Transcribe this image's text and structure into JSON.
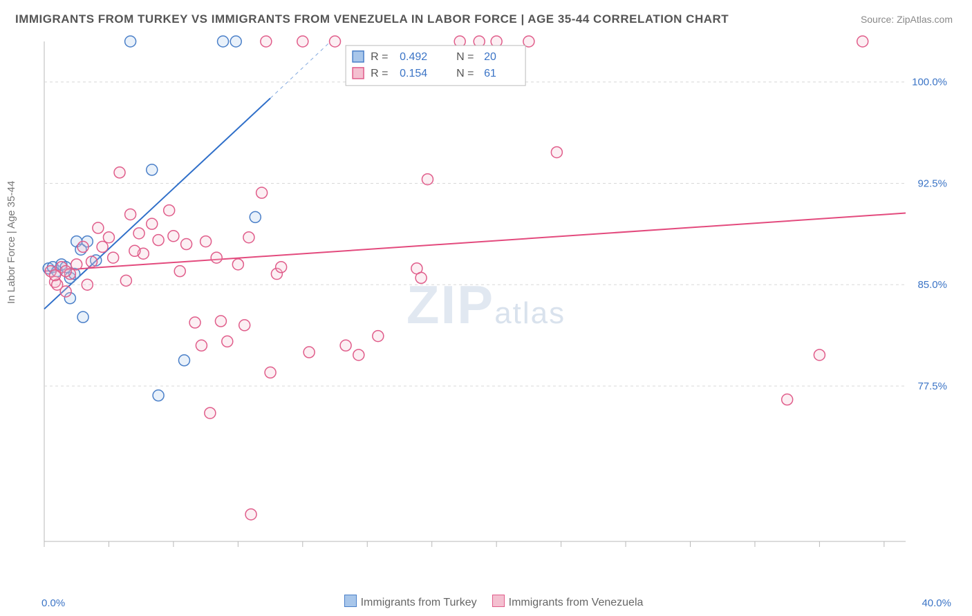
{
  "title": "IMMIGRANTS FROM TURKEY VS IMMIGRANTS FROM VENEZUELA IN LABOR FORCE | AGE 35-44 CORRELATION CHART",
  "source": "Source: ZipAtlas.com",
  "ylabel": "In Labor Force | Age 35-44",
  "watermark_big": "ZIP",
  "watermark_small": "atlas",
  "chart": {
    "type": "scatter",
    "background_color": "#ffffff",
    "grid_color": "#d8d8d8",
    "grid_dash": "4,4",
    "axis_color": "#b8b8b8",
    "tick_len": 8,
    "xlim": [
      0,
      40
    ],
    "ylim": [
      66,
      103
    ],
    "xticks_minor": [
      0,
      3,
      6,
      9,
      12,
      15,
      18,
      21,
      24,
      27,
      30,
      33,
      36,
      39
    ],
    "yticks": [
      77.5,
      85.0,
      92.5,
      100.0
    ],
    "ytick_labels": [
      "77.5%",
      "85.0%",
      "92.5%",
      "100.0%"
    ],
    "xtick_labels": {
      "0": "0.0%",
      "40": "40.0%"
    },
    "label_color": "#3b74c6",
    "label_fontsize": 15,
    "marker_radius": 8,
    "marker_stroke_width": 1.5,
    "marker_fill_opacity": 0.25,
    "stats_box": {
      "x": 17,
      "y_top": 102.7,
      "width": 10,
      "border_color": "#bbbbbb",
      "text_color": "#555555",
      "value_color": "#3b74c6",
      "fontsize": 16,
      "rows": [
        {
          "swatch_fill": "#a8c6ea",
          "swatch_stroke": "#4a7fc8",
          "r": "0.492",
          "n": "20"
        },
        {
          "swatch_fill": "#f4c0d0",
          "swatch_stroke": "#e05c8a",
          "r": "0.154",
          "n": "61"
        }
      ],
      "labels": {
        "r": "R =",
        "n": "N ="
      }
    },
    "series": [
      {
        "name": "Immigrants from Turkey",
        "fill": "#a8c6ea",
        "stroke": "#4a7fc8",
        "trend": {
          "x1": 0,
          "y1": 83.2,
          "x2": 13.3,
          "y2": 103,
          "solid_to_x": 10.5,
          "solid_to_y": 98.8,
          "color": "#2f6fc9",
          "width": 2
        },
        "points": [
          [
            0.2,
            86.2
          ],
          [
            0.4,
            86.3
          ],
          [
            0.6,
            86.0
          ],
          [
            0.8,
            86.5
          ],
          [
            1.0,
            86.3
          ],
          [
            1.2,
            85.5
          ],
          [
            1.5,
            88.2
          ],
          [
            1.7,
            87.6
          ],
          [
            1.2,
            84.0
          ],
          [
            1.8,
            82.6
          ],
          [
            2.0,
            88.2
          ],
          [
            2.4,
            86.8
          ],
          [
            4.0,
            103
          ],
          [
            5.0,
            93.5
          ],
          [
            6.5,
            79.4
          ],
          [
            8.3,
            103
          ],
          [
            8.9,
            103
          ],
          [
            5.3,
            76.8
          ],
          [
            9.8,
            90.0
          ],
          [
            1.4,
            85.8
          ]
        ]
      },
      {
        "name": "Immigrants from Venezuela",
        "fill": "#f4c0d0",
        "stroke": "#e05c8a",
        "trend": {
          "x1": 0,
          "y1": 86.0,
          "x2": 40,
          "y2": 90.3,
          "color": "#e34a7d",
          "width": 2
        },
        "points": [
          [
            0.3,
            86.0
          ],
          [
            0.5,
            85.2
          ],
          [
            0.8,
            86.3
          ],
          [
            0.6,
            85.0
          ],
          [
            1.2,
            85.8
          ],
          [
            1.0,
            84.5
          ],
          [
            1.5,
            86.5
          ],
          [
            1.8,
            87.8
          ],
          [
            2.0,
            85.0
          ],
          [
            2.2,
            86.7
          ],
          [
            2.5,
            89.2
          ],
          [
            3.0,
            88.5
          ],
          [
            3.2,
            87.0
          ],
          [
            3.5,
            93.3
          ],
          [
            4.0,
            90.2
          ],
          [
            4.4,
            88.8
          ],
          [
            4.6,
            87.3
          ],
          [
            5.0,
            89.5
          ],
          [
            5.3,
            88.3
          ],
          [
            5.8,
            90.5
          ],
          [
            6.0,
            88.6
          ],
          [
            6.3,
            86.0
          ],
          [
            6.6,
            88.0
          ],
          [
            7.0,
            82.2
          ],
          [
            7.3,
            80.5
          ],
          [
            7.5,
            88.2
          ],
          [
            8.0,
            87.0
          ],
          [
            8.2,
            82.3
          ],
          [
            8.5,
            80.8
          ],
          [
            9.0,
            86.5
          ],
          [
            9.3,
            82.0
          ],
          [
            9.5,
            88.5
          ],
          [
            10.1,
            91.8
          ],
          [
            10.3,
            103
          ],
          [
            10.8,
            85.8
          ],
          [
            7.7,
            75.5
          ],
          [
            9.6,
            68.0
          ],
          [
            10.5,
            78.5
          ],
          [
            11.0,
            86.3
          ],
          [
            12.0,
            103
          ],
          [
            12.3,
            80.0
          ],
          [
            13.5,
            103
          ],
          [
            14.0,
            80.5
          ],
          [
            14.6,
            79.8
          ],
          [
            15.5,
            81.2
          ],
          [
            17.3,
            86.2
          ],
          [
            17.8,
            92.8
          ],
          [
            17.5,
            85.5
          ],
          [
            23.8,
            94.8
          ],
          [
            22.5,
            103
          ],
          [
            38.0,
            103
          ],
          [
            36.0,
            79.8
          ],
          [
            34.5,
            76.5
          ],
          [
            20.2,
            103
          ],
          [
            19.3,
            103
          ],
          [
            21.0,
            103
          ],
          [
            1.0,
            86.0
          ],
          [
            0.5,
            85.7
          ],
          [
            2.7,
            87.8
          ],
          [
            3.8,
            85.3
          ],
          [
            4.2,
            87.5
          ]
        ]
      }
    ],
    "legend_bottom": [
      {
        "label": "Immigrants from Turkey",
        "fill": "#a8c6ea",
        "stroke": "#4a7fc8"
      },
      {
        "label": "Immigrants from Venezuela",
        "fill": "#f4c0d0",
        "stroke": "#e05c8a"
      }
    ]
  }
}
